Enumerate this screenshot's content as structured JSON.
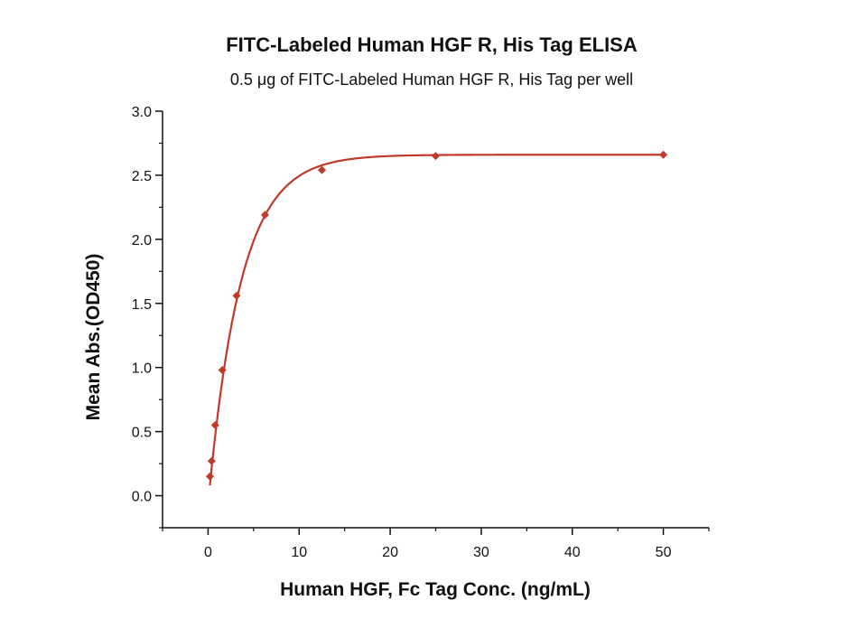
{
  "chart_data": {
    "type": "scatter",
    "title": "FITC-Labeled Human HGF R, His Tag ELISA",
    "subtitle": "0.5 μg of FITC-Labeled Human HGF R, His Tag per well",
    "xlabel": "Human HGF, Fc Tag Conc. (ng/mL)",
    "ylabel": "Mean Abs.(OD450)",
    "xlim": [
      -5,
      55
    ],
    "ylim": [
      -0.25,
      3.0
    ],
    "xticks": [
      0,
      10,
      20,
      30,
      40,
      50
    ],
    "xtick_labels": [
      "0",
      "10",
      "20",
      "30",
      "40",
      "50"
    ],
    "yticks": [
      0.0,
      0.5,
      1.0,
      1.5,
      2.0,
      2.5,
      3.0
    ],
    "ytick_labels": [
      "0.0",
      "0.5",
      "1.0",
      "1.5",
      "2.0",
      "2.5",
      "3.0"
    ],
    "grid": false,
    "series": [
      {
        "points": [
          {
            "x": 0.2,
            "y": 0.15
          },
          {
            "x": 0.39,
            "y": 0.27
          },
          {
            "x": 0.78,
            "y": 0.55
          },
          {
            "x": 1.56,
            "y": 0.98
          },
          {
            "x": 3.13,
            "y": 1.56
          },
          {
            "x": 6.25,
            "y": 2.19
          },
          {
            "x": 12.5,
            "y": 2.54
          },
          {
            "x": 25,
            "y": 2.65
          },
          {
            "x": 50,
            "y": 2.66
          }
        ],
        "fit": {
          "model": "saturation",
          "ymax": 2.66,
          "k": 0.28,
          "y0": 0.08
        }
      }
    ],
    "colors": {
      "series": "#c0392b",
      "axis": "#111111"
    }
  }
}
